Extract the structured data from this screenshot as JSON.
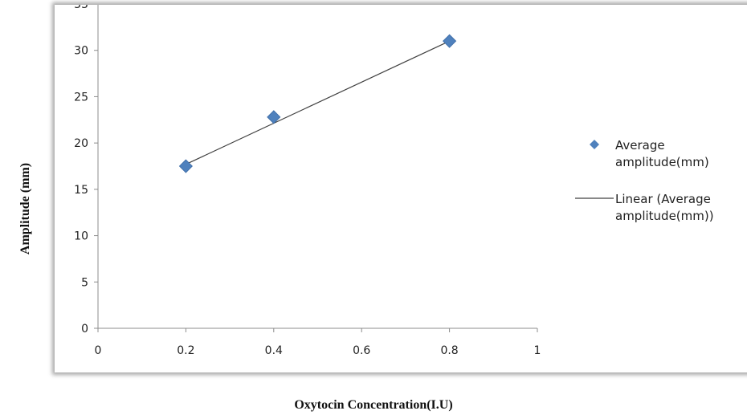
{
  "chart_data": {
    "type": "scatter",
    "xlabel": "Oxytocin Concentration(I.U)",
    "ylabel": "Amplitude (mm)",
    "xlim": [
      0,
      1
    ],
    "ylim": [
      0,
      35
    ],
    "x_ticks": [
      "0",
      "0.2",
      "0.4",
      "0.6",
      "0.8",
      "1"
    ],
    "y_ticks": [
      "0",
      "5",
      "10",
      "15",
      "20",
      "25",
      "30",
      "35"
    ],
    "grid": false,
    "legend_position": "right",
    "series": [
      {
        "name": "Average amplitude(mm)",
        "name_lines": [
          "Average",
          "amplitude(mm)"
        ],
        "marker": "diamond",
        "color": "#4f81bd",
        "points": [
          {
            "x": 0.2,
            "y": 17.5
          },
          {
            "x": 0.4,
            "y": 22.8
          },
          {
            "x": 0.8,
            "y": 31.0
          }
        ]
      }
    ],
    "trendline": {
      "name": "Linear (Average amplitude(mm))",
      "name_lines": [
        "Linear (Average",
        "amplitude(mm))"
      ],
      "color": "#404040",
      "from": {
        "x": 0.2,
        "y": 17.7
      },
      "to": {
        "x": 0.8,
        "y": 31.0
      }
    }
  }
}
